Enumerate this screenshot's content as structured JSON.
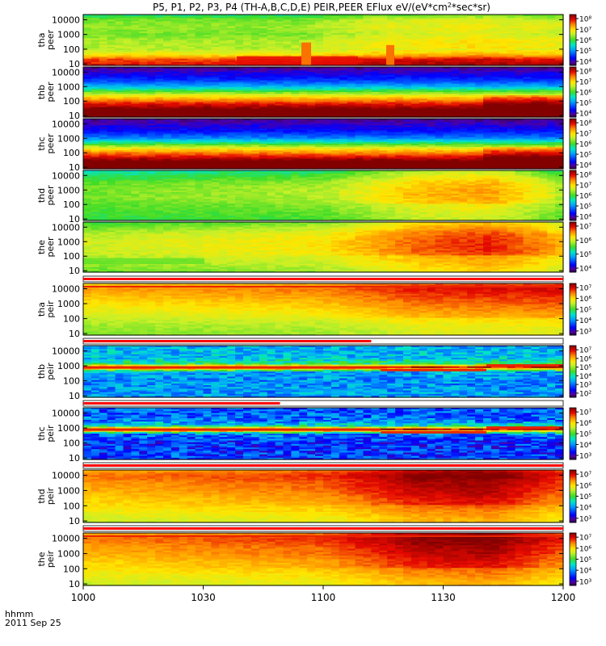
{
  "chart_data": {
    "type": "heatmap",
    "title": "P5, P1, P2, P3, P4 (TH-A,B,C,D,E) PEIR,PEER EFlux eV/(eV*cm2*sec*sr)",
    "x_tick_labels": [
      "1000",
      "1030",
      "1100",
      "1130",
      "1200"
    ],
    "x_range": [
      "1000",
      "1200"
    ],
    "time_label": "hhmm",
    "date_label": "2011 Sep 25",
    "y_scale": "log",
    "y_tick_labels": [
      "10",
      "100",
      "1000",
      "10000"
    ],
    "panels": [
      {
        "probe": "tha",
        "product": "peer",
        "label_1": "tha",
        "label_2": "peer",
        "colorbar_ticks": [
          "10⁴",
          "10⁵",
          "10⁶",
          "10⁷",
          "10⁸"
        ],
        "cmin": 4,
        "cmax": 8,
        "profile": [
          [
            1,
            7.6
          ],
          [
            1.3,
            7.4
          ],
          [
            1.6,
            6.8
          ],
          [
            2.0,
            6.4
          ],
          [
            2.5,
            6.4
          ],
          [
            3.0,
            6.2
          ],
          [
            3.5,
            6.3
          ],
          [
            4.0,
            6.2
          ],
          [
            4.3,
            5.8
          ]
        ],
        "time_trend": [
          [
            0,
            0
          ],
          [
            0.45,
            0
          ],
          [
            0.6,
            0.3
          ],
          [
            0.8,
            0.4
          ],
          [
            1,
            0.3
          ]
        ],
        "overlays": [
          "red-bursts-low-energy"
        ]
      },
      {
        "probe": "thb",
        "product": "peer",
        "label_1": "thb",
        "label_2": "peer",
        "colorbar_ticks": [
          "10⁴",
          "10⁵",
          "10⁶",
          "10⁷",
          "10⁸"
        ],
        "cmin": 4,
        "cmax": 8,
        "profile": [
          [
            1,
            8.4
          ],
          [
            1.4,
            8.1
          ],
          [
            1.8,
            7.6
          ],
          [
            2.2,
            7.0
          ],
          [
            2.6,
            6.2
          ],
          [
            3.0,
            5.3
          ],
          [
            3.5,
            4.7
          ],
          [
            4.3,
            4.2
          ]
        ],
        "time_trend": [
          [
            0,
            0
          ],
          [
            0.82,
            0
          ],
          [
            0.85,
            0.4
          ],
          [
            1,
            0.4
          ]
        ]
      },
      {
        "probe": "thc",
        "product": "peer",
        "label_1": "thc",
        "label_2": "peer",
        "colorbar_ticks": [
          "10⁴",
          "10⁵",
          "10⁶",
          "10⁷",
          "10⁸"
        ],
        "cmin": 4,
        "cmax": 8,
        "profile": [
          [
            1,
            8.4
          ],
          [
            1.4,
            8.1
          ],
          [
            1.8,
            7.5
          ],
          [
            2.2,
            6.9
          ],
          [
            2.6,
            6.0
          ],
          [
            3.0,
            5.1
          ],
          [
            3.5,
            4.6
          ],
          [
            4.3,
            4.2
          ]
        ],
        "time_trend": [
          [
            0,
            0
          ],
          [
            0.82,
            0
          ],
          [
            0.85,
            0.4
          ],
          [
            1,
            0.4
          ]
        ]
      },
      {
        "probe": "thd",
        "product": "peer",
        "label_1": "thd",
        "label_2": "peer",
        "colorbar_ticks": [
          "10⁴",
          "10⁵",
          "10⁶",
          "10⁷",
          "10⁸"
        ],
        "cmin": 4,
        "cmax": 8,
        "profile": [
          [
            1,
            5.9
          ],
          [
            1.5,
            6.0
          ],
          [
            2.0,
            6.1
          ],
          [
            2.5,
            6.2
          ],
          [
            3.0,
            6.2
          ],
          [
            3.5,
            6.1
          ],
          [
            4.0,
            5.8
          ],
          [
            4.3,
            5.6
          ]
        ],
        "time_trend": [
          [
            0,
            0
          ],
          [
            0.5,
            0.2
          ],
          [
            0.7,
            0.8
          ],
          [
            0.85,
            0.9
          ],
          [
            0.95,
            0.5
          ],
          [
            1,
            0.2
          ]
        ]
      },
      {
        "probe": "the",
        "product": "peer",
        "label_1": "the",
        "label_2": "peer",
        "colorbar_ticks": [
          "10⁴",
          "10⁵",
          "10⁶",
          "10⁷"
        ],
        "cmin": 3.5,
        "cmax": 7.8,
        "profile": [
          [
            1,
            5.8
          ],
          [
            1.5,
            6.0
          ],
          [
            2.0,
            6.1
          ],
          [
            2.5,
            6.2
          ],
          [
            3.0,
            6.2
          ],
          [
            3.5,
            6.1
          ],
          [
            4.0,
            5.8
          ],
          [
            4.3,
            5.6
          ]
        ],
        "time_trend": [
          [
            0,
            0
          ],
          [
            0.5,
            0.3
          ],
          [
            0.7,
            0.9
          ],
          [
            0.85,
            1.1
          ],
          [
            0.95,
            0.8
          ],
          [
            1,
            0.5
          ]
        ],
        "overlays": [
          "green-band-start"
        ]
      },
      {
        "probe": "tha",
        "product": "peir",
        "label_1": "tha",
        "label_2": "peir",
        "colorbar_ticks": [
          "10³",
          "10⁴",
          "10⁵",
          "10⁶",
          "10⁷"
        ],
        "cmin": 2.5,
        "cmax": 7.5,
        "profile": [
          [
            1,
            5.3
          ],
          [
            1.5,
            5.4
          ],
          [
            2.0,
            5.6
          ],
          [
            2.5,
            5.8
          ],
          [
            3.0,
            6.0
          ],
          [
            3.5,
            6.2
          ],
          [
            4.0,
            6.4
          ],
          [
            4.3,
            6.1
          ]
        ],
        "time_trend": [
          [
            0,
            0
          ],
          [
            0.5,
            0.2
          ],
          [
            0.7,
            0.6
          ],
          [
            1,
            0.7
          ]
        ],
        "overlays": [
          "thin-red-line-top"
        ],
        "red_bar_fraction": 1.0
      },
      {
        "probe": "thb",
        "product": "peir",
        "label_1": "thb",
        "label_2": "peir",
        "colorbar_ticks": [
          "10²",
          "10³",
          "10⁴",
          "10⁵",
          "10⁶",
          "10⁷"
        ],
        "cmin": 1.5,
        "cmax": 7.5,
        "profile": [
          [
            1,
            3.3
          ],
          [
            2.0,
            3.2
          ],
          [
            2.6,
            3.4
          ],
          [
            2.8,
            5.8
          ],
          [
            2.9,
            7.2
          ],
          [
            3.0,
            6.0
          ],
          [
            3.1,
            4.4
          ],
          [
            3.5,
            3.6
          ],
          [
            4.3,
            3.4
          ]
        ],
        "time_trend": [
          [
            0,
            0
          ],
          [
            1,
            0
          ]
        ],
        "overlays": [
          "ion-band-steps"
        ],
        "red_bar_fraction": 0.6
      },
      {
        "probe": "thc",
        "product": "peir",
        "label_1": "thc",
        "label_2": "peir",
        "colorbar_ticks": [
          "10³",
          "10⁴",
          "10⁵",
          "10⁶",
          "10⁷"
        ],
        "cmin": 2.5,
        "cmax": 7.5,
        "profile": [
          [
            1,
            3.5
          ],
          [
            2.0,
            3.4
          ],
          [
            2.6,
            3.8
          ],
          [
            2.8,
            6.0
          ],
          [
            2.9,
            7.3
          ],
          [
            3.0,
            6.2
          ],
          [
            3.1,
            4.6
          ],
          [
            3.5,
            3.8
          ],
          [
            4.3,
            3.6
          ]
        ],
        "time_trend": [
          [
            0,
            0
          ],
          [
            1,
            0
          ]
        ],
        "overlays": [
          "ion-band-steps"
        ],
        "red_bar_fraction": 0.41
      },
      {
        "probe": "thd",
        "product": "peir",
        "label_1": "thd",
        "label_2": "peir",
        "colorbar_ticks": [
          "10³",
          "10⁴",
          "10⁵",
          "10⁶",
          "10⁷"
        ],
        "cmin": 2.5,
        "cmax": 7.5,
        "profile": [
          [
            1,
            5.6
          ],
          [
            1.5,
            5.8
          ],
          [
            2.0,
            6.0
          ],
          [
            2.5,
            6.1
          ],
          [
            3.0,
            6.3
          ],
          [
            3.5,
            6.4
          ],
          [
            4.0,
            6.6
          ],
          [
            4.3,
            6.3
          ]
        ],
        "time_trend": [
          [
            0,
            0
          ],
          [
            0.5,
            0.3
          ],
          [
            0.7,
            0.9
          ],
          [
            0.85,
            1.0
          ],
          [
            0.95,
            0.6
          ],
          [
            1,
            0.4
          ]
        ],
        "red_bar_fraction": 1.0
      },
      {
        "probe": "the",
        "product": "peir",
        "label_1": "the",
        "label_2": "peir",
        "colorbar_ticks": [
          "10³",
          "10⁴",
          "10⁵",
          "10⁶",
          "10⁷"
        ],
        "cmin": 2.5,
        "cmax": 7.5,
        "profile": [
          [
            1,
            5.6
          ],
          [
            1.5,
            5.8
          ],
          [
            2.0,
            6.0
          ],
          [
            2.5,
            6.1
          ],
          [
            3.0,
            6.3
          ],
          [
            3.5,
            6.4
          ],
          [
            4.0,
            6.6
          ],
          [
            4.3,
            6.3
          ]
        ],
        "time_trend": [
          [
            0,
            0
          ],
          [
            0.5,
            0.3
          ],
          [
            0.7,
            0.9
          ],
          [
            0.85,
            1.0
          ],
          [
            0.95,
            0.6
          ],
          [
            1,
            0.4
          ]
        ],
        "overlays": [
          "thin-red-line-top"
        ],
        "red_bar_fraction": 1.0
      }
    ]
  }
}
